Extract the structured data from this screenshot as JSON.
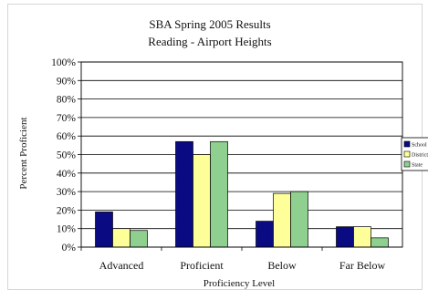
{
  "chart_data": {
    "type": "bar",
    "title": "SBA Spring 2005 Results",
    "subtitle": "Reading - Airport Heights",
    "xlabel": "Proficiency Level",
    "ylabel": "Percent Proficient",
    "categories": [
      "Advanced",
      "Proficient",
      "Below",
      "Far Below"
    ],
    "ylim": [
      0,
      100
    ],
    "yticks": [
      "0%",
      "10%",
      "20%",
      "30%",
      "40%",
      "50%",
      "60%",
      "70%",
      "80%",
      "90%",
      "100%"
    ],
    "grid": true,
    "legend": "right",
    "series": [
      {
        "name": "School",
        "values": [
          19,
          57,
          14,
          11
        ],
        "color": "#0a0a82"
      },
      {
        "name": "District",
        "values": [
          10,
          50,
          29,
          11
        ],
        "color": "#ffff99"
      },
      {
        "name": "State",
        "values": [
          9,
          57,
          30,
          5
        ],
        "color": "#8fcf8f"
      }
    ]
  }
}
